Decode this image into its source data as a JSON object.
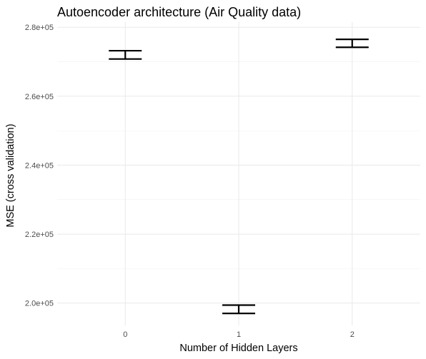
{
  "chart_data": {
    "type": "errorbar",
    "title": "Autoencoder architecture (Air Quality data)",
    "xlabel": "Number of Hidden Layers",
    "ylabel": "MSE (cross validation)",
    "categories": [
      "0",
      "1",
      "2"
    ],
    "points": [
      {
        "x": "0",
        "ymin": 270800,
        "ymax": 273200
      },
      {
        "x": "1",
        "ymin": 197000,
        "ymax": 199400
      },
      {
        "x": "2",
        "ymin": 274200,
        "ymax": 276500
      }
    ],
    "y_ticks": [
      200000,
      220000,
      240000,
      260000,
      280000
    ],
    "y_tick_labels": [
      "2.0e+05",
      "2.2e+05",
      "2.4e+05",
      "2.6e+05",
      "2.8e+05"
    ],
    "ylim": [
      193500,
      281500
    ],
    "grid": true,
    "legend": "none",
    "colors": {
      "bars": "#000000",
      "grid_major": "#ebebeb",
      "grid_minor": "#f2f2f2",
      "tick_text": "#4d4d4d"
    }
  }
}
